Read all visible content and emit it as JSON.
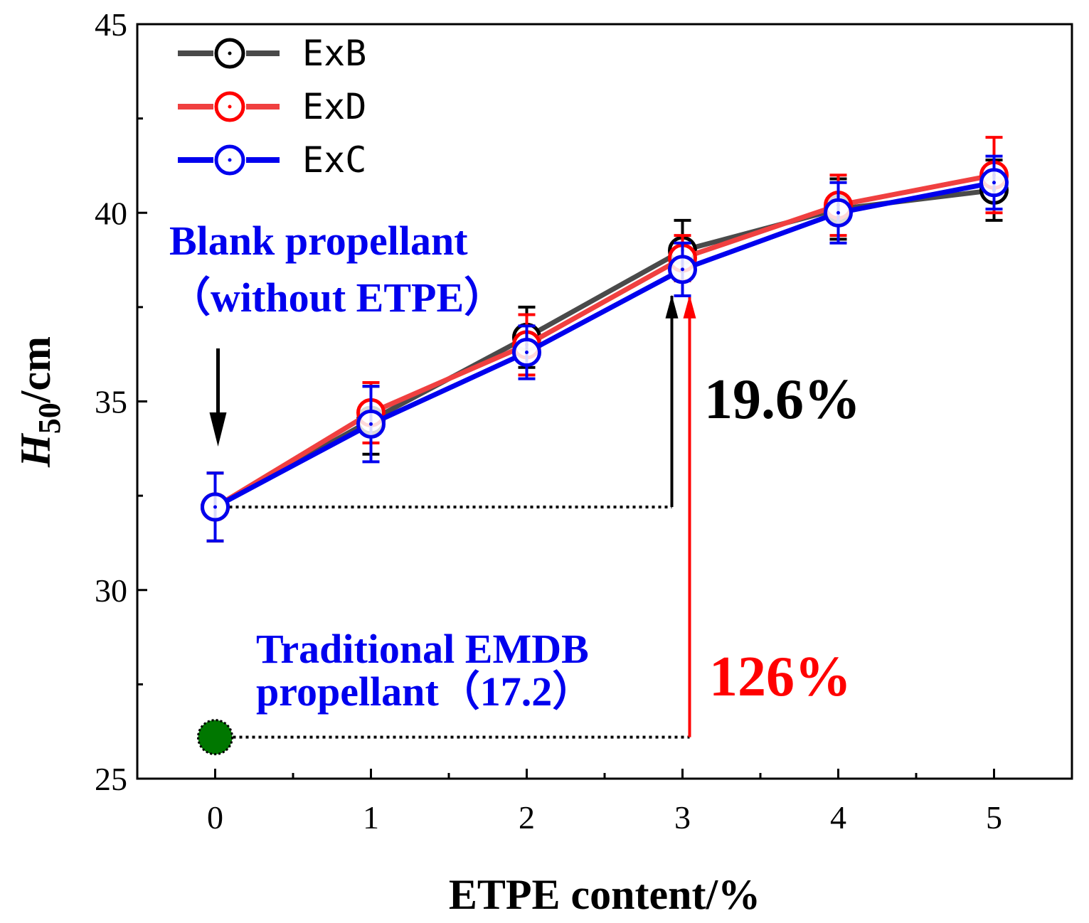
{
  "chart_data": {
    "type": "line",
    "xlabel": "ETPE content/%",
    "ylabel_main": "H",
    "ylabel_sub": "50",
    "ylabel_unit": "/cm",
    "x": [
      0,
      1,
      2,
      3,
      4,
      5
    ],
    "xlim": [
      -0.5,
      5.5
    ],
    "ylim": [
      25,
      45
    ],
    "xticks": [
      "0",
      "1",
      "2",
      "3",
      "4",
      "5"
    ],
    "yticks": [
      "25",
      "30",
      "35",
      "40",
      "45"
    ],
    "series": [
      {
        "name": "ExB",
        "color": "#4a4a4a",
        "marker": "#000000",
        "values": [
          32.2,
          34.5,
          36.7,
          39.0,
          40.1,
          40.6
        ],
        "errors": [
          0.9,
          0.9,
          0.8,
          0.8,
          0.8,
          0.8
        ]
      },
      {
        "name": "ExD",
        "color": "#f04040",
        "marker": "#ff0000",
        "values": [
          32.2,
          34.7,
          36.5,
          38.8,
          40.2,
          41.0
        ],
        "errors": [
          0.9,
          0.8,
          0.8,
          0.6,
          0.8,
          1.0
        ]
      },
      {
        "name": "ExC",
        "color": "#0000ee",
        "marker": "#0000ee",
        "values": [
          32.2,
          34.4,
          36.3,
          38.5,
          40.0,
          40.8
        ],
        "errors": [
          0.9,
          1.0,
          0.7,
          0.7,
          0.8,
          0.7
        ]
      }
    ],
    "reference_point": {
      "x": 0,
      "y": 26.1,
      "color": "#007700"
    },
    "annotations": {
      "blank_line1": "Blank propellant",
      "blank_line2": "（without ETPE）",
      "traditional_line1": "Traditional EMDB",
      "traditional_line2": "propellant（17.2）",
      "pct_black": "19.6%",
      "pct_red": "126%"
    },
    "legend_position": "top-left"
  }
}
